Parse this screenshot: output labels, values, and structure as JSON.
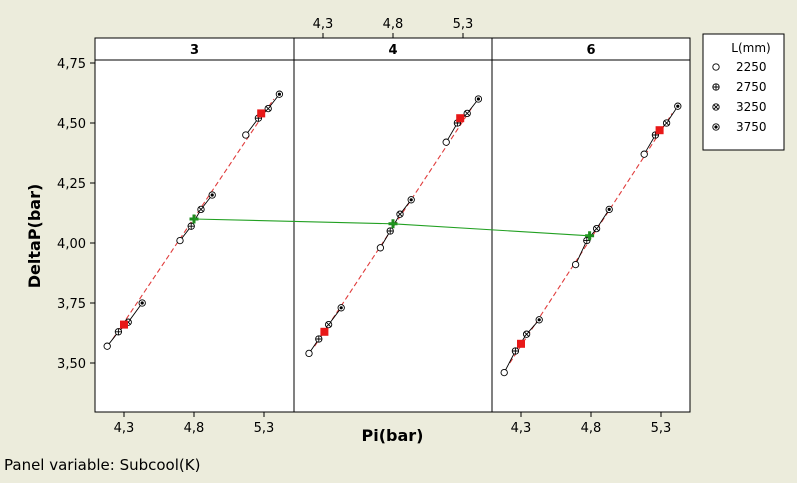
{
  "chart_data": {
    "type": "scatter",
    "title": "",
    "xlabel": "Pi(bar)",
    "ylabel": "DeltaP(bar)",
    "panel_variable_text": "Panel variable: Subcool(K)",
    "panel_labels": [
      "3",
      "4",
      "6"
    ],
    "xlim": [
      4.15,
      5.45
    ],
    "ylim": [
      3.43,
      4.77
    ],
    "x_ticks": [
      4.3,
      4.8,
      5.3
    ],
    "x_tick_labels": [
      "4,3",
      "4,8",
      "5,3"
    ],
    "y_ticks": [
      3.5,
      3.75,
      4.0,
      4.25,
      4.5,
      4.75
    ],
    "y_tick_labels": [
      "3,50",
      "3,75",
      "4,00",
      "4,25",
      "4,50",
      "4,75"
    ],
    "bottom_tick_panels": [
      0,
      2
    ],
    "top_tick_panels": [
      1
    ],
    "grid": false,
    "legend": {
      "title": "L(mm)",
      "position": "right",
      "entries": [
        {
          "label": "2250",
          "marker": "circle"
        },
        {
          "label": "2750",
          "marker": "circle-plus"
        },
        {
          "label": "3250",
          "marker": "circle-x"
        },
        {
          "label": "3750",
          "marker": "circle-dot"
        }
      ]
    },
    "colors": {
      "background": "#ececdc",
      "plot": "#ffffff",
      "fit_line": "#e03c3c",
      "mean_marker": "#e81818",
      "center_marker": "#1e8c1e",
      "connector": "#22a022",
      "series_line": "#000000"
    },
    "panels": [
      {
        "subcool": "3",
        "series": [
          {
            "name": "2250",
            "x": [
              4.18,
              4.7,
              5.17
            ],
            "y": [
              3.57,
              4.01,
              4.45
            ]
          },
          {
            "name": "2750",
            "x": [
              4.26,
              4.78,
              5.26
            ],
            "y": [
              3.63,
              4.07,
              4.52
            ]
          },
          {
            "name": "3250",
            "x": [
              4.33,
              4.85,
              5.33
            ],
            "y": [
              3.67,
              4.14,
              4.56
            ]
          },
          {
            "name": "3750",
            "x": [
              4.43,
              4.93,
              5.41
            ],
            "y": [
              3.75,
              4.2,
              4.62
            ]
          }
        ],
        "fit": {
          "x": [
            4.22,
            5.37
          ],
          "y": [
            3.6,
            4.6
          ]
        },
        "means": [
          {
            "x": 4.3,
            "y": 3.66
          },
          {
            "x": 5.28,
            "y": 4.54
          }
        ],
        "center": {
          "x": 4.8,
          "y": 4.1
        }
      },
      {
        "subcool": "4",
        "series": [
          {
            "name": "2250",
            "x": [
              4.2,
              4.71,
              5.18
            ],
            "y": [
              3.54,
              3.98,
              4.42
            ]
          },
          {
            "name": "2750",
            "x": [
              4.27,
              4.78,
              5.26
            ],
            "y": [
              3.6,
              4.05,
              4.5
            ]
          },
          {
            "name": "3250",
            "x": [
              4.34,
              4.85,
              5.33
            ],
            "y": [
              3.66,
              4.12,
              4.54
            ]
          },
          {
            "name": "3750",
            "x": [
              4.43,
              4.93,
              5.41
            ],
            "y": [
              3.73,
              4.18,
              4.6
            ]
          }
        ],
        "fit": {
          "x": [
            4.24,
            5.37
          ],
          "y": [
            3.57,
            4.57
          ]
        },
        "means": [
          {
            "x": 4.31,
            "y": 3.63
          },
          {
            "x": 5.28,
            "y": 4.52
          }
        ],
        "center": {
          "x": 4.8,
          "y": 4.08
        }
      },
      {
        "subcool": "6",
        "series": [
          {
            "name": "2250",
            "x": [
              4.18,
              4.69,
              5.18
            ],
            "y": [
              3.46,
              3.91,
              4.37
            ]
          },
          {
            "name": "2750",
            "x": [
              4.26,
              4.77,
              5.26
            ],
            "y": [
              3.55,
              4.01,
              4.45
            ]
          },
          {
            "name": "3250",
            "x": [
              4.34,
              4.84,
              5.34
            ],
            "y": [
              3.62,
              4.06,
              4.5
            ]
          },
          {
            "name": "3750",
            "x": [
              4.43,
              4.93,
              5.42
            ],
            "y": [
              3.68,
              4.14,
              4.57
            ]
          }
        ],
        "fit": {
          "x": [
            4.22,
            5.38
          ],
          "y": [
            3.5,
            4.54
          ]
        },
        "means": [
          {
            "x": 4.3,
            "y": 3.58
          },
          {
            "x": 5.29,
            "y": 4.47
          }
        ],
        "center": {
          "x": 4.79,
          "y": 4.03
        }
      }
    ]
  }
}
